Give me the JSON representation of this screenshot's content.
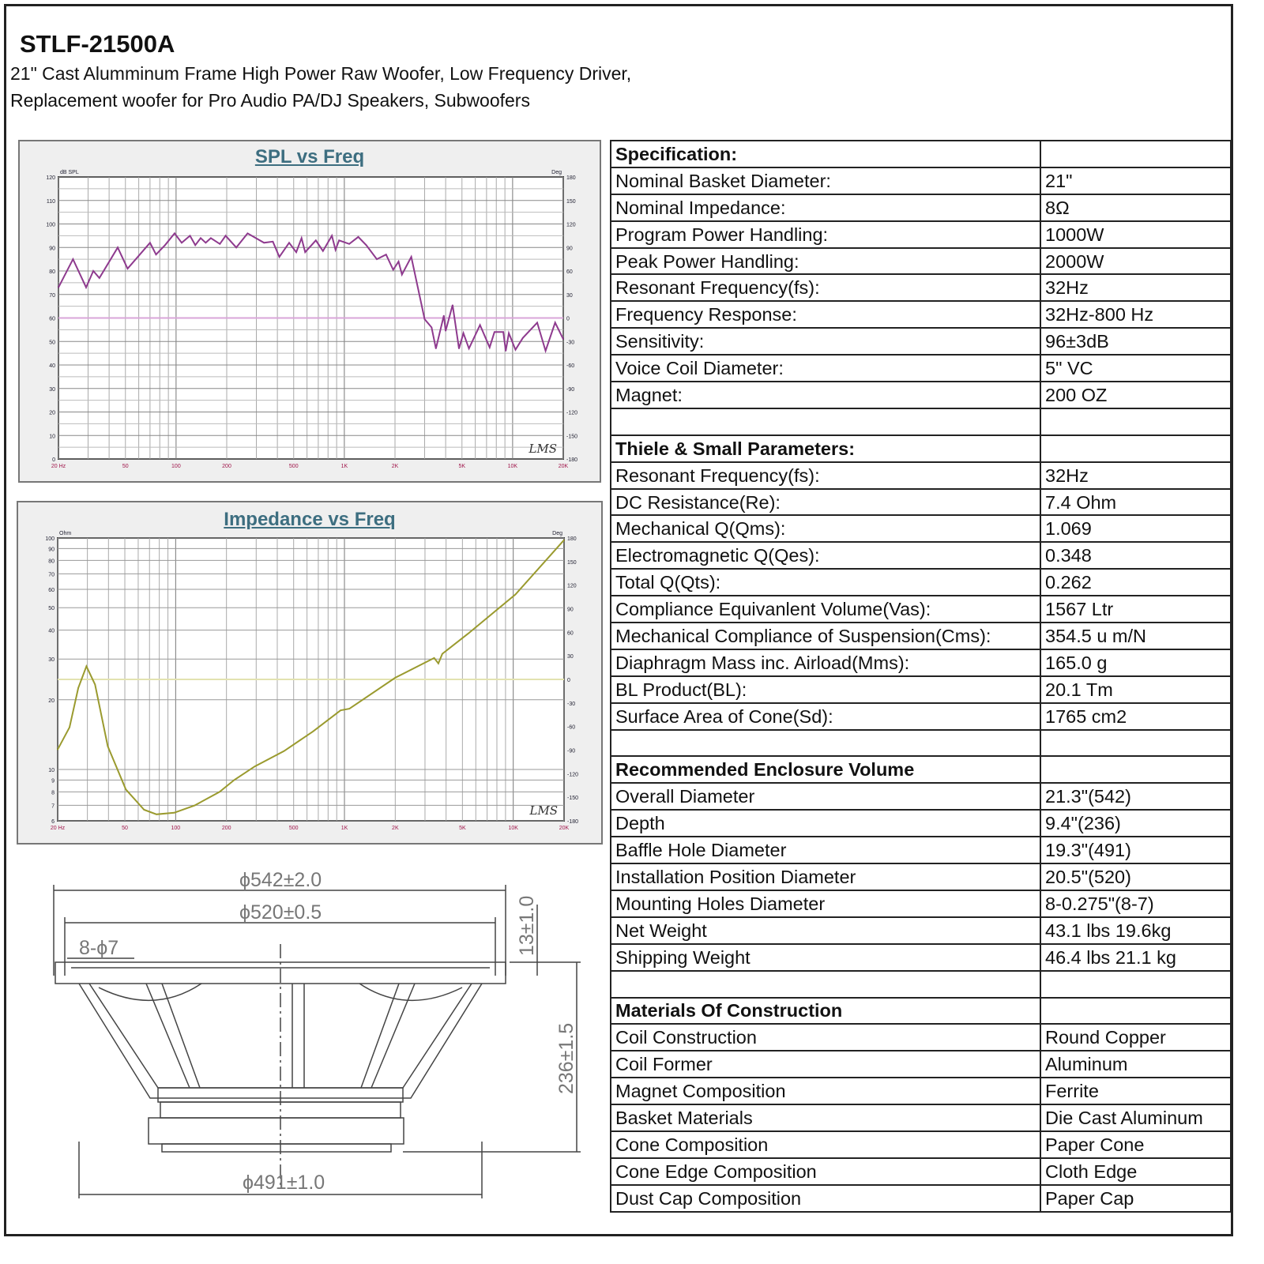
{
  "header": {
    "model": "STLF-21500A",
    "line1": "21\" Cast Alumminum Frame High Power Raw Woofer, Low Frequency Driver,",
    "line2": "Replacement woofer for  Pro Audio PA/DJ Speakers, Subwoofers"
  },
  "spec_table": [
    {
      "k": "Specification:",
      "v": "",
      "header": true
    },
    {
      "k": "Nominal Basket Diameter:",
      "v": "21\""
    },
    {
      "k": "Nominal Impedance:",
      "v": "8Ω"
    },
    {
      "k": "Program Power Handling:",
      "v": "1000W"
    },
    {
      "k": "Peak Power Handling:",
      "v": "2000W"
    },
    {
      "k": "Resonant Frequency(fs):",
      "v": "32Hz"
    },
    {
      "k": "Frequency Response:",
      "v": "32Hz-800 Hz"
    },
    {
      "k": "Sensitivity:",
      "v": "96±3dB"
    },
    {
      "k": "Voice Coil Diameter:",
      "v": "5\" VC"
    },
    {
      "k": "Magnet:",
      "v": "200 OZ"
    },
    {
      "k": "",
      "v": ""
    },
    {
      "k": "Thiele & Small Parameters:",
      "v": "",
      "header": true
    },
    {
      "k": "Resonant Frequency(fs):",
      "v": "32Hz"
    },
    {
      "k": "DC Resistance(Re):",
      "v": "7.4 Ohm"
    },
    {
      "k": "Mechanical Q(Qms):",
      "v": "1.069"
    },
    {
      "k": "Electromagnetic Q(Qes):",
      "v": "0.348"
    },
    {
      "k": "Total Q(Qts):",
      "v": "0.262"
    },
    {
      "k": "Compliance Equivanlent Volume(Vas):",
      "v": "1567 Ltr"
    },
    {
      "k": "Mechanical Compliance of Suspension(Cms):",
      "v": "354.5 u m/N"
    },
    {
      "k": "Diaphragm Mass inc. Airload(Mms):",
      "v": "165.0 g"
    },
    {
      "k": "BL Product(BL):",
      "v": "20.1 Tm"
    },
    {
      "k": "Surface Area of Cone(Sd):",
      "v": "1765  cm2"
    },
    {
      "k": "",
      "v": ""
    },
    {
      "k": "Recommended Enclosure Volume",
      "v": "",
      "header": true
    },
    {
      "k": "Overall Diameter",
      "v": "21.3\"(542)"
    },
    {
      "k": "Depth",
      "v": "9.4\"(236)"
    },
    {
      "k": "Baffle Hole Diameter",
      "v": "19.3\"(491)"
    },
    {
      "k": "Installation Position  Diameter",
      "v": "20.5\"(520)"
    },
    {
      "k": "Mounting Holes Diameter",
      "v": "8-0.275\"(8-7)"
    },
    {
      "k": "Net Weight",
      "v": "43.1 lbs   19.6kg"
    },
    {
      "k": "Shipping Weight",
      "v": "46.4 lbs   21.1 kg"
    },
    {
      "k": "",
      "v": ""
    },
    {
      "k": "Materials Of Construction",
      "v": "",
      "header": true
    },
    {
      "k": "Coil Construction",
      "v": "Round Copper"
    },
    {
      "k": "Coil Former",
      "v": "Aluminum"
    },
    {
      "k": "Magnet Composition",
      "v": "Ferrite"
    },
    {
      "k": "Basket Materials",
      "v": "Die Cast Aluminum"
    },
    {
      "k": "Cone Composition",
      "v": "Paper Cone"
    },
    {
      "k": "Cone Edge Composition",
      "v": "Cloth Edge"
    },
    {
      "k": "Dust Cap Composition",
      "v": "Paper Cap"
    }
  ],
  "drawing": {
    "dim_overall": "ϕ542±2.0",
    "dim_install": "ϕ520±0.5",
    "dim_holes": "8-ϕ7",
    "dim_flange": "13±1.0",
    "dim_depth": "236±1.5",
    "dim_baffle": "ϕ491±1.0"
  },
  "chart_data": [
    {
      "type": "line",
      "title": "SPL vs Freq",
      "ylabel": "dB SPL",
      "y2label": "Deg",
      "watermark": "LMS",
      "xscale": "log",
      "xlim": [
        20,
        20000
      ],
      "ylim": [
        0,
        120
      ],
      "y2lim": [
        -180,
        180
      ],
      "grid": true,
      "color": "#8e3a8e",
      "refline_color": "#d9a6d9",
      "xticks": [
        {
          "v": 20,
          "l": "20 Hz"
        },
        {
          "v": 50,
          "l": "50"
        },
        {
          "v": 100,
          "l": "100"
        },
        {
          "v": 200,
          "l": "200"
        },
        {
          "v": 500,
          "l": "500"
        },
        {
          "v": 1000,
          "l": "1K"
        },
        {
          "v": 2000,
          "l": "2K"
        },
        {
          "v": 5000,
          "l": "5K"
        },
        {
          "v": 10000,
          "l": "10K"
        },
        {
          "v": 20000,
          "l": "20K"
        }
      ],
      "yticks": [
        0,
        10,
        20,
        30,
        40,
        50,
        60,
        70,
        80,
        90,
        100,
        110,
        120
      ],
      "y2ticks": [
        -180,
        -150,
        -120,
        -90,
        -60,
        -30,
        0,
        30,
        60,
        90,
        120,
        150,
        180
      ],
      "x": [
        20,
        24.4,
        29.2,
        32.2,
        35,
        45,
        51.5,
        70,
        76,
        86,
        98,
        108,
        121,
        130,
        140,
        150,
        161,
        182,
        197,
        228,
        266,
        333,
        376,
        411,
        470,
        518,
        557,
        585,
        677,
        746,
        843,
        886,
        930,
        1070,
        1210,
        1350,
        1560,
        1770,
        1950,
        2100,
        2200,
        2500,
        3000,
        3300,
        3500,
        3900,
        4000,
        4400,
        4800,
        5100,
        5500,
        6400,
        7300,
        7800,
        8800,
        9100,
        9500,
        10400,
        11500,
        14000,
        15700,
        17900,
        20000
      ],
      "y": [
        73,
        85,
        73,
        80,
        77,
        90,
        81,
        92,
        87,
        91,
        96,
        92,
        95,
        91,
        94,
        92,
        94,
        91.5,
        95,
        90,
        96,
        92,
        92.5,
        86,
        92,
        88,
        94,
        88,
        93,
        88.5,
        95,
        89,
        93,
        91.5,
        94.5,
        91,
        85,
        87,
        80.5,
        84,
        78.5,
        86,
        59.5,
        56,
        47,
        61,
        54.5,
        65.5,
        47,
        53.5,
        47,
        57,
        47.5,
        54,
        54,
        46,
        53.5,
        46.5,
        51.5,
        58,
        46,
        58,
        51
      ]
    },
    {
      "type": "line",
      "title": "Impedance vs Freq",
      "ylabel": "Ohm",
      "y2label": "Deg",
      "watermark": "LMS",
      "xscale": "log",
      "yscale": "log",
      "xlim": [
        20,
        20000
      ],
      "ylim": [
        6,
        100
      ],
      "y2lim": [
        -180,
        180
      ],
      "grid": true,
      "color": "#9a9a2e",
      "refline_color": "#e3e3b0",
      "xticks": [
        {
          "v": 20,
          "l": "20 Hz"
        },
        {
          "v": 50,
          "l": "50"
        },
        {
          "v": 100,
          "l": "100"
        },
        {
          "v": 200,
          "l": "200"
        },
        {
          "v": 500,
          "l": "500"
        },
        {
          "v": 1000,
          "l": "1K"
        },
        {
          "v": 2000,
          "l": "2K"
        },
        {
          "v": 5000,
          "l": "5K"
        },
        {
          "v": 10000,
          "l": "10K"
        },
        {
          "v": 20000,
          "l": "20K"
        }
      ],
      "yticks": [
        6,
        7,
        8,
        9,
        10,
        20,
        30,
        40,
        50,
        60,
        70,
        80,
        90,
        100
      ],
      "y2ticks": [
        -180,
        -150,
        -120,
        -90,
        -60,
        -30,
        0,
        30,
        60,
        90,
        120,
        150,
        180
      ],
      "x": [
        20,
        23.5,
        26.5,
        29.6,
        33.3,
        39.6,
        50.7,
        65,
        77,
        98,
        130,
        182,
        222,
        294,
        438,
        652,
        948,
        1070,
        2000,
        3400,
        3600,
        3800,
        5400,
        10300,
        20000
      ],
      "y": [
        12.2,
        15.2,
        22.5,
        27.9,
        23.3,
        12.6,
        8.2,
        6.7,
        6.4,
        6.5,
        7.0,
        8.0,
        9.0,
        10.3,
        12.0,
        14.6,
        18.0,
        18.3,
        24.9,
        30.3,
        28.7,
        31.6,
        38.6,
        57,
        98
      ]
    }
  ]
}
